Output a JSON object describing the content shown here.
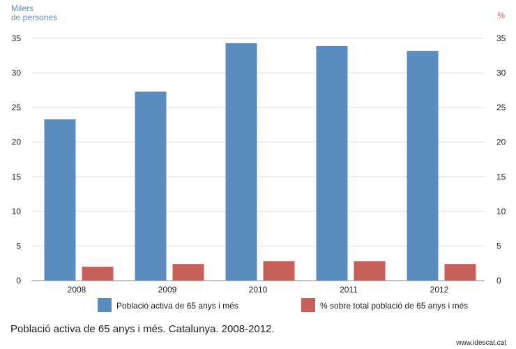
{
  "chart_data": {
    "type": "bar",
    "categories": [
      "2008",
      "2009",
      "2010",
      "2011",
      "2012"
    ],
    "series": [
      {
        "name": "Població activa de 65 anys i més",
        "axis": "left",
        "color": "#5b8cbf",
        "values": [
          23.3,
          27.3,
          34.3,
          33.9,
          33.2
        ]
      },
      {
        "name": "% sobre total població de 65 anys i més",
        "axis": "right",
        "color": "#c8605a",
        "values": [
          2.0,
          2.4,
          2.8,
          2.8,
          2.4
        ]
      }
    ],
    "ylabel": "Milers de persones",
    "ylabel_lines": [
      "Milers",
      "de persones"
    ],
    "y2label": "%",
    "ylim": [
      0,
      35
    ],
    "y2lim": [
      0,
      35
    ],
    "yticks": [
      0,
      5,
      10,
      15,
      20,
      25,
      30,
      35
    ],
    "grid": true,
    "legend_position": "bottom"
  },
  "caption": "Població activa de 65 anys i més. Catalunya. 2008-2012.",
  "source": "www.idescat.cat"
}
